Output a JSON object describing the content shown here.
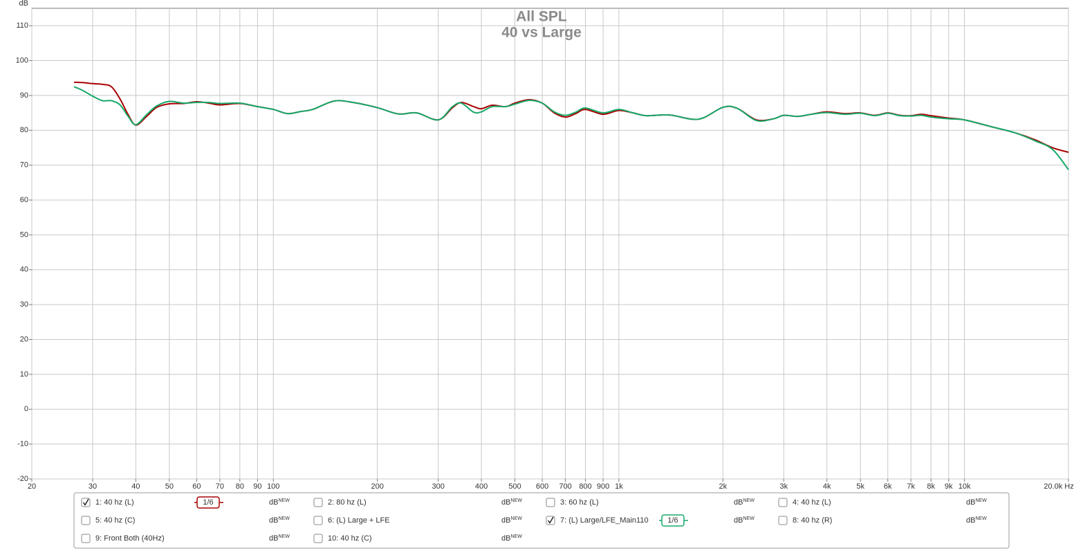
{
  "chart_data": {
    "type": "line",
    "title": "All SPL",
    "subtitle": "40 vs Large",
    "ylabel": "dB",
    "xscale": "log",
    "grid": true,
    "x": [
      26.5,
      28,
      30,
      32,
      34,
      36,
      38,
      40,
      43,
      46,
      50,
      55,
      60,
      65,
      70,
      80,
      90,
      100,
      110,
      120,
      130,
      150,
      170,
      200,
      230,
      260,
      300,
      330,
      350,
      380,
      400,
      430,
      470,
      500,
      550,
      600,
      650,
      700,
      750,
      800,
      900,
      1000,
      1100,
      1200,
      1400,
      1700,
      2000,
      2200,
      2500,
      2800,
      3000,
      3300,
      3600,
      4000,
      4500,
      5000,
      5500,
      6000,
      6500,
      7000,
      7500,
      8000,
      9000,
      10000,
      12000,
      14000,
      16000,
      18000,
      20000
    ],
    "series": [
      {
        "color": "#a80000",
        "values": [
          93.8,
          93.7,
          93.4,
          93.2,
          92.5,
          89,
          84.5,
          81.5,
          84,
          86.6,
          87.6,
          87.7,
          88.2,
          87.8,
          87.3,
          87.7,
          86.8,
          86.0,
          84.8,
          85.4,
          86,
          88.4,
          88,
          86.5,
          84.7,
          85,
          83,
          86.5,
          88,
          86.8,
          86.2,
          87.2,
          86.8,
          87.8,
          88.8,
          87.8,
          85,
          83.8,
          84.8,
          86,
          84.6,
          85.7,
          85,
          84.2,
          84.4,
          83.2,
          86.6,
          86.3,
          83,
          83.3,
          84.3,
          84,
          84.6,
          85.3,
          84.8,
          85,
          84.3,
          85,
          84.3,
          84.2,
          84.6,
          84.2,
          83.5,
          83,
          81,
          79.3,
          77.3,
          75,
          73.7
        ]
      },
      {
        "color": "#17a86a",
        "values": [
          92.5,
          91.5,
          89.8,
          88.5,
          88.5,
          87.3,
          84,
          81.6,
          84.5,
          87,
          88.3,
          87.8,
          88,
          88,
          87.7,
          87.8,
          86.8,
          86.0,
          84.8,
          85.4,
          86,
          88.4,
          88,
          86.5,
          84.7,
          85,
          83,
          86.8,
          87.8,
          85.2,
          85.3,
          86.8,
          86.8,
          87.5,
          88.6,
          87.8,
          85.3,
          84.3,
          85.2,
          86.4,
          85,
          86,
          85,
          84.2,
          84.4,
          83.2,
          86.6,
          86.3,
          82.8,
          83.3,
          84.3,
          84,
          84.6,
          85.1,
          84.6,
          84.9,
          84.2,
          84.9,
          84.2,
          84.1,
          84.3,
          83.8,
          83.3,
          83,
          81,
          79.3,
          77,
          74.5,
          68.7
        ]
      }
    ],
    "xlim": [
      20,
      20000
    ],
    "ylim": [
      -20,
      115
    ],
    "xticks": [
      20,
      30,
      40,
      50,
      60,
      70,
      80,
      90,
      100,
      200,
      300,
      400,
      500,
      600,
      700,
      800,
      900,
      {
        "value": 1000,
        "label": "1k"
      },
      {
        "value": 2000,
        "label": "2k"
      },
      {
        "value": 3000,
        "label": "3k"
      },
      {
        "value": 4000,
        "label": "4k"
      },
      {
        "value": 5000,
        "label": "5k"
      },
      {
        "value": 6000,
        "label": "6k"
      },
      {
        "value": 7000,
        "label": "7k"
      },
      {
        "value": 8000,
        "label": "8k"
      },
      {
        "value": 9000,
        "label": "9k"
      },
      {
        "value": 10000,
        "label": "10k"
      },
      {
        "value": 20000,
        "label": "20.0k Hz"
      }
    ],
    "yticks": [
      -20,
      -10,
      0,
      10,
      20,
      30,
      40,
      50,
      60,
      70,
      80,
      90,
      100,
      110
    ]
  },
  "legend_panel": {
    "unit": "dB",
    "tag": "NEW",
    "items": [
      {
        "label": "1: 40 hz (L)",
        "color": "#a80000",
        "checked": true,
        "smoothing": "1/6"
      },
      {
        "label": "2: 80 hz (L)",
        "color": "#1a8a1a",
        "checked": false
      },
      {
        "label": "3: 60 hz (L)",
        "color": "#3a3ad0",
        "checked": false
      },
      {
        "label": "4: 40 hz (L)",
        "color": "#a020c0",
        "checked": false
      },
      {
        "label": "5: 40 hz (C)",
        "color": "#0a7a8a",
        "checked": false
      },
      {
        "label": "6: (L) Large + LFE",
        "color": "#b8901a",
        "checked": false
      },
      {
        "label": "7: (L) Large/LFE_Main110",
        "color": "#17a86a",
        "checked": true,
        "smoothing": "1/6"
      },
      {
        "label": "8: 40 hz (R)",
        "color": "#8020a0",
        "checked": false
      },
      {
        "label": "9: Front Both (40Hz)",
        "color": "#b02080",
        "checked": false
      },
      {
        "label": "10: 40 hz (C)",
        "color": "#2080c0",
        "checked": false
      }
    ]
  }
}
